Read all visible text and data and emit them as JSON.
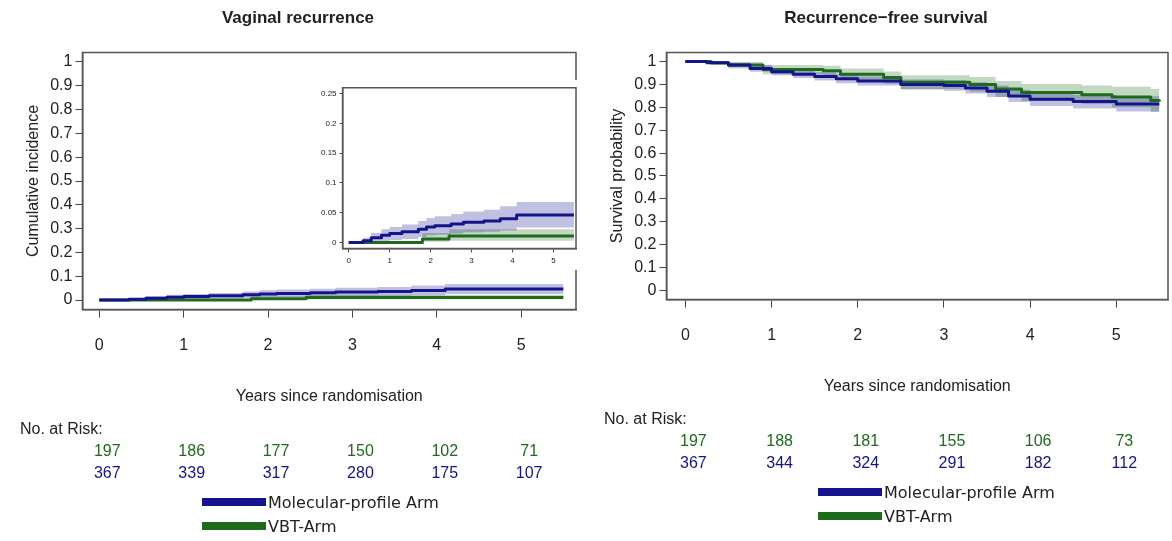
{
  "chart_data": [
    {
      "type": "step",
      "title": "Vaginal recurrence",
      "xlabel": "Years since randomisation",
      "ylabel": "Cumulative incidence",
      "xlim": [
        -0.2,
        5.65
      ],
      "xticks": [
        0,
        1,
        2,
        3,
        4,
        5
      ],
      "ylim": [
        -0.04,
        1.04
      ],
      "yticks": [
        0,
        0.1,
        0.2,
        0.3,
        0.4,
        0.5,
        0.6,
        0.7,
        0.8,
        0.9,
        1
      ],
      "legend": "bottom",
      "grid": false,
      "annotations": [
        "No. at Risk:",
        "197",
        "186",
        "177",
        "150",
        "102",
        "71",
        "367",
        "339",
        "317",
        "280",
        "175",
        "107"
      ],
      "series": [
        {
          "name": "Molecular-profile Arm",
          "color": "#14148c",
          "x": [
            0,
            0.35,
            0.55,
            0.8,
            1.0,
            1.3,
            1.7,
            1.9,
            2.1,
            2.5,
            2.8,
            3.3,
            3.7,
            4.1,
            5.5
          ],
          "values": [
            0,
            0.003,
            0.008,
            0.012,
            0.015,
            0.018,
            0.022,
            0.026,
            0.028,
            0.031,
            0.034,
            0.036,
            0.04,
            0.046,
            0.046
          ],
          "lower": [
            0,
            0,
            0,
            0.002,
            0.004,
            0.006,
            0.009,
            0.012,
            0.013,
            0.015,
            0.017,
            0.018,
            0.02,
            0.025,
            0.025
          ],
          "upper": [
            0,
            0.008,
            0.016,
            0.022,
            0.026,
            0.03,
            0.036,
            0.041,
            0.044,
            0.048,
            0.052,
            0.055,
            0.061,
            0.068,
            0.068
          ]
        },
        {
          "name": "VBT-Arm",
          "color": "#1e6b1e",
          "x": [
            0,
            1.8,
            2.45,
            5.5
          ],
          "values": [
            0,
            0.006,
            0.011,
            0.011
          ],
          "lower": [
            0,
            0.001,
            0.003,
            0.003
          ],
          "upper": [
            0,
            0.016,
            0.022,
            0.022
          ]
        }
      ]
    },
    {
      "type": "step",
      "xlim": [
        -0.15,
        5.55
      ],
      "xticks": [
        0,
        1,
        2,
        3,
        4,
        5
      ],
      "ylim": [
        -0.01,
        0.26
      ],
      "yticks": [
        0,
        0.05,
        0.1,
        0.15,
        0.2,
        0.25
      ],
      "grid": false,
      "series": [
        {
          "color": "#14148c",
          "x": [
            0,
            0.35,
            0.55,
            0.8,
            1.0,
            1.3,
            1.7,
            1.9,
            2.1,
            2.5,
            2.8,
            3.3,
            3.7,
            4.1,
            5.5
          ],
          "values": [
            0,
            0.003,
            0.008,
            0.012,
            0.015,
            0.018,
            0.022,
            0.026,
            0.028,
            0.031,
            0.034,
            0.036,
            0.04,
            0.046,
            0.046
          ],
          "lower": [
            0,
            0,
            0,
            0.002,
            0.004,
            0.006,
            0.009,
            0.012,
            0.013,
            0.015,
            0.017,
            0.018,
            0.02,
            0.025,
            0.025
          ],
          "upper": [
            0,
            0.008,
            0.016,
            0.022,
            0.026,
            0.03,
            0.036,
            0.041,
            0.044,
            0.048,
            0.052,
            0.055,
            0.061,
            0.068,
            0.068
          ]
        },
        {
          "color": "#1e6b1e",
          "x": [
            0,
            1.8,
            2.45,
            5.5
          ],
          "values": [
            0,
            0.006,
            0.011,
            0.011
          ],
          "lower": [
            0,
            0.001,
            0.003,
            0.003
          ],
          "upper": [
            0,
            0.016,
            0.022,
            0.022
          ]
        }
      ]
    },
    {
      "type": "step",
      "title": "Recurrence−free survival",
      "xlabel": "Years since randomisation",
      "ylabel": "Survival probability",
      "xlim": [
        -0.22,
        5.6
      ],
      "xticks": [
        0,
        1,
        2,
        3,
        4,
        5
      ],
      "ylim": [
        -0.04,
        1.04
      ],
      "yticks": [
        0,
        0.1,
        0.2,
        0.3,
        0.4,
        0.5,
        0.6,
        0.7,
        0.8,
        0.9,
        1
      ],
      "legend": "bottom",
      "grid": false,
      "annotations": [
        "No. at Risk:",
        "197",
        "188",
        "181",
        "155",
        "106",
        "73",
        "367",
        "344",
        "324",
        "291",
        "182",
        "112"
      ],
      "series": [
        {
          "name": "Molecular-profile Arm",
          "color": "#14148c",
          "x": [
            0,
            0.25,
            0.5,
            0.75,
            1.0,
            1.25,
            1.5,
            1.75,
            2.0,
            2.5,
            3.0,
            3.25,
            3.5,
            3.75,
            4.0,
            4.5,
            5.0,
            5.5
          ],
          "values": [
            1,
            0.995,
            0.985,
            0.97,
            0.955,
            0.945,
            0.935,
            0.925,
            0.915,
            0.9,
            0.895,
            0.885,
            0.87,
            0.85,
            0.835,
            0.825,
            0.815,
            0.815
          ],
          "lower": [
            1,
            0.99,
            0.975,
            0.955,
            0.94,
            0.928,
            0.917,
            0.905,
            0.895,
            0.878,
            0.872,
            0.86,
            0.845,
            0.823,
            0.806,
            0.795,
            0.782,
            0.775
          ],
          "upper": [
            1,
            1,
            0.995,
            0.985,
            0.97,
            0.962,
            0.953,
            0.945,
            0.935,
            0.922,
            0.918,
            0.91,
            0.895,
            0.877,
            0.864,
            0.855,
            0.848,
            0.855
          ]
        },
        {
          "name": "VBT-Arm",
          "color": "#1e6b1e",
          "x": [
            0,
            0.3,
            0.5,
            0.9,
            1.6,
            1.8,
            2.3,
            2.5,
            3.3,
            3.6,
            3.9,
            4.6,
            4.95,
            5.4,
            5.5
          ],
          "values": [
            1,
            0.995,
            0.985,
            0.965,
            0.96,
            0.945,
            0.93,
            0.91,
            0.9,
            0.88,
            0.865,
            0.855,
            0.845,
            0.83,
            0.825
          ],
          "lower": [
            1,
            0.985,
            0.97,
            0.945,
            0.938,
            0.92,
            0.903,
            0.88,
            0.868,
            0.845,
            0.828,
            0.815,
            0.8,
            0.78,
            0.77
          ],
          "upper": [
            1,
            1,
            0.998,
            0.985,
            0.982,
            0.97,
            0.957,
            0.94,
            0.932,
            0.915,
            0.902,
            0.895,
            0.89,
            0.88,
            0.885
          ]
        }
      ]
    }
  ]
}
